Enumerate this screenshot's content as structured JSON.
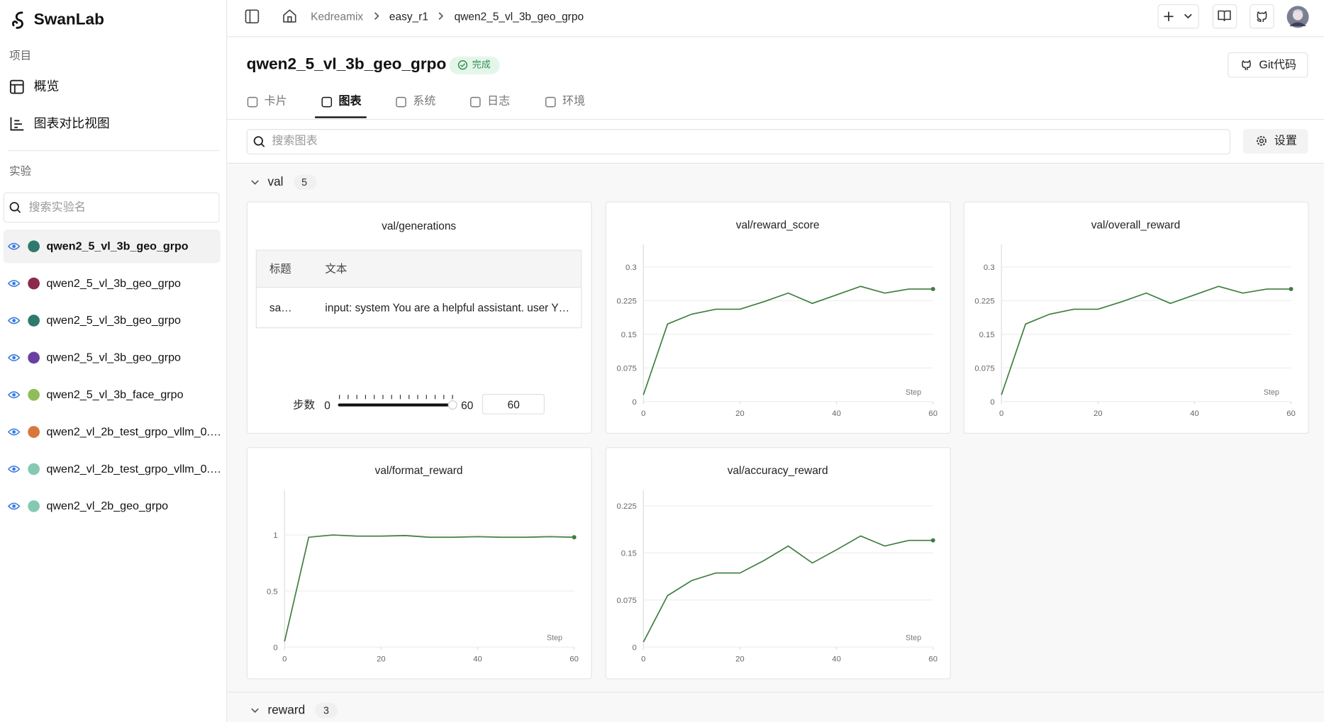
{
  "sidebar": {
    "logo": "SwanLab",
    "project_label": "项目",
    "nav": [
      "概览",
      "图表对比视图"
    ],
    "experiments_label": "实验",
    "search_placeholder": "搜索实验名",
    "selected": 0,
    "experiments": [
      {
        "name": "qwen2_5_vl_3b_geo_grpo",
        "color": "#2e7a6c"
      },
      {
        "name": "qwen2_5_vl_3b_geo_grpo",
        "color": "#8c2a4c"
      },
      {
        "name": "qwen2_5_vl_3b_geo_grpo",
        "color": "#2e7a6c"
      },
      {
        "name": "qwen2_5_vl_3b_geo_grpo",
        "color": "#6a3fa2"
      },
      {
        "name": "qwen2_5_vl_3b_face_grpo",
        "color": "#8fbd58"
      },
      {
        "name": "qwen2_vl_2b_test_grpo_vllm_0.…",
        "color": "#d9763a"
      },
      {
        "name": "qwen2_vl_2b_test_grpo_vllm_0.…",
        "color": "#86c9b2"
      },
      {
        "name": "qwen2_vl_2b_geo_grpo",
        "color": "#86c9b2"
      }
    ]
  },
  "topbar": {
    "breadcrumb": [
      "Kedreamix",
      "easy_r1",
      "qwen2_5_vl_3b_geo_grpo"
    ]
  },
  "header": {
    "title": "qwen2_5_vl_3b_geo_grpo",
    "status": "完成",
    "git_button": "Git代码",
    "tabs": [
      "卡片",
      "图表",
      "系统",
      "日志",
      "环境"
    ],
    "active_tab": 1,
    "search_placeholder": "搜索图表",
    "settings": "设置"
  },
  "groups": [
    {
      "name": "val",
      "count": 5
    },
    {
      "name": "reward",
      "count": 3
    }
  ],
  "table_panel": {
    "title": "val/generations",
    "columns": [
      "标题",
      "文本"
    ],
    "rows": [
      [
        "sa…",
        "input: system You are a helpful assistant. user Y…"
      ]
    ],
    "slider_label": "步数",
    "slider_min": 0,
    "slider_max": 60,
    "slider_value": 60
  },
  "chart_data": [
    {
      "type": "line",
      "title": "val/reward_score",
      "x_label": "Step",
      "color": "#3d7d3f",
      "x": [
        0,
        5,
        10,
        15,
        20,
        25,
        30,
        35,
        40,
        45,
        50,
        55,
        60
      ],
      "values": [
        0.015,
        0.173,
        0.195,
        0.206,
        0.206,
        0.223,
        0.242,
        0.219,
        0.238,
        0.257,
        0.242,
        0.251,
        0.251
      ],
      "xlim": [
        0,
        60
      ],
      "xticks": [
        0,
        20,
        40,
        60
      ],
      "ylim": [
        0,
        0.35
      ],
      "yticks": [
        0,
        0.075,
        0.15,
        0.225,
        0.3
      ],
      "grid": true
    },
    {
      "type": "line",
      "title": "val/overall_reward",
      "x_label": "Step",
      "color": "#3d7d3f",
      "x": [
        0,
        5,
        10,
        15,
        20,
        25,
        30,
        35,
        40,
        45,
        50,
        55,
        60
      ],
      "values": [
        0.015,
        0.173,
        0.195,
        0.206,
        0.206,
        0.223,
        0.242,
        0.219,
        0.238,
        0.257,
        0.242,
        0.251,
        0.251
      ],
      "xlim": [
        0,
        60
      ],
      "xticks": [
        0,
        20,
        40,
        60
      ],
      "ylim": [
        0,
        0.35
      ],
      "yticks": [
        0,
        0.075,
        0.15,
        0.225,
        0.3
      ],
      "grid": true
    },
    {
      "type": "line",
      "title": "val/format_reward",
      "x_label": "Step",
      "color": "#3d7d3f",
      "x": [
        0,
        5,
        10,
        15,
        20,
        25,
        30,
        35,
        40,
        45,
        50,
        55,
        60
      ],
      "values": [
        0.05,
        0.98,
        1.0,
        0.99,
        0.99,
        0.995,
        0.98,
        0.98,
        0.985,
        0.98,
        0.98,
        0.985,
        0.98
      ],
      "xlim": [
        0,
        60
      ],
      "xticks": [
        0,
        20,
        40,
        60
      ],
      "ylim": [
        0,
        1.4
      ],
      "yticks": [
        0,
        0.5,
        1
      ],
      "grid": true
    },
    {
      "type": "line",
      "title": "val/accuracy_reward",
      "x_label": "Step",
      "color": "#3d7d3f",
      "x": [
        0,
        5,
        10,
        15,
        20,
        25,
        30,
        35,
        40,
        45,
        50,
        55,
        60
      ],
      "values": [
        0.008,
        0.082,
        0.106,
        0.118,
        0.118,
        0.138,
        0.161,
        0.134,
        0.155,
        0.177,
        0.161,
        0.17,
        0.17
      ],
      "xlim": [
        0,
        60
      ],
      "xticks": [
        0,
        20,
        40,
        60
      ],
      "ylim": [
        0,
        0.25
      ],
      "yticks": [
        0,
        0.075,
        0.15,
        0.225
      ],
      "grid": true
    }
  ]
}
